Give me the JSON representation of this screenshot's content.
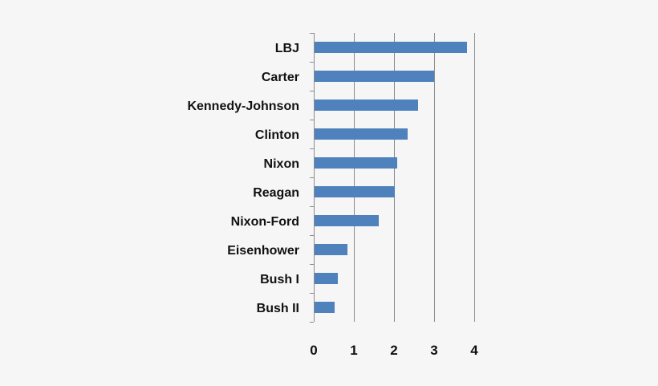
{
  "chart_data": {
    "type": "bar",
    "orientation": "horizontal",
    "categories": [
      "LBJ",
      "Carter",
      "Kennedy-Johnson",
      "Clinton",
      "Nixon",
      "Reagan",
      "Nixon-Ford",
      "Eisenhower",
      "Bush I",
      "Bush II"
    ],
    "values": [
      3.82,
      3.0,
      2.6,
      2.34,
      2.08,
      2.02,
      1.62,
      0.84,
      0.6,
      0.52
    ],
    "xlim": [
      0,
      4
    ],
    "xticks": [
      "0",
      "1",
      "2",
      "3",
      "4"
    ],
    "grid": true,
    "legend": false,
    "bar_color": "#4f81bd",
    "grid_color": "#8c8c8c",
    "title": "",
    "xlabel": "",
    "ylabel": ""
  }
}
